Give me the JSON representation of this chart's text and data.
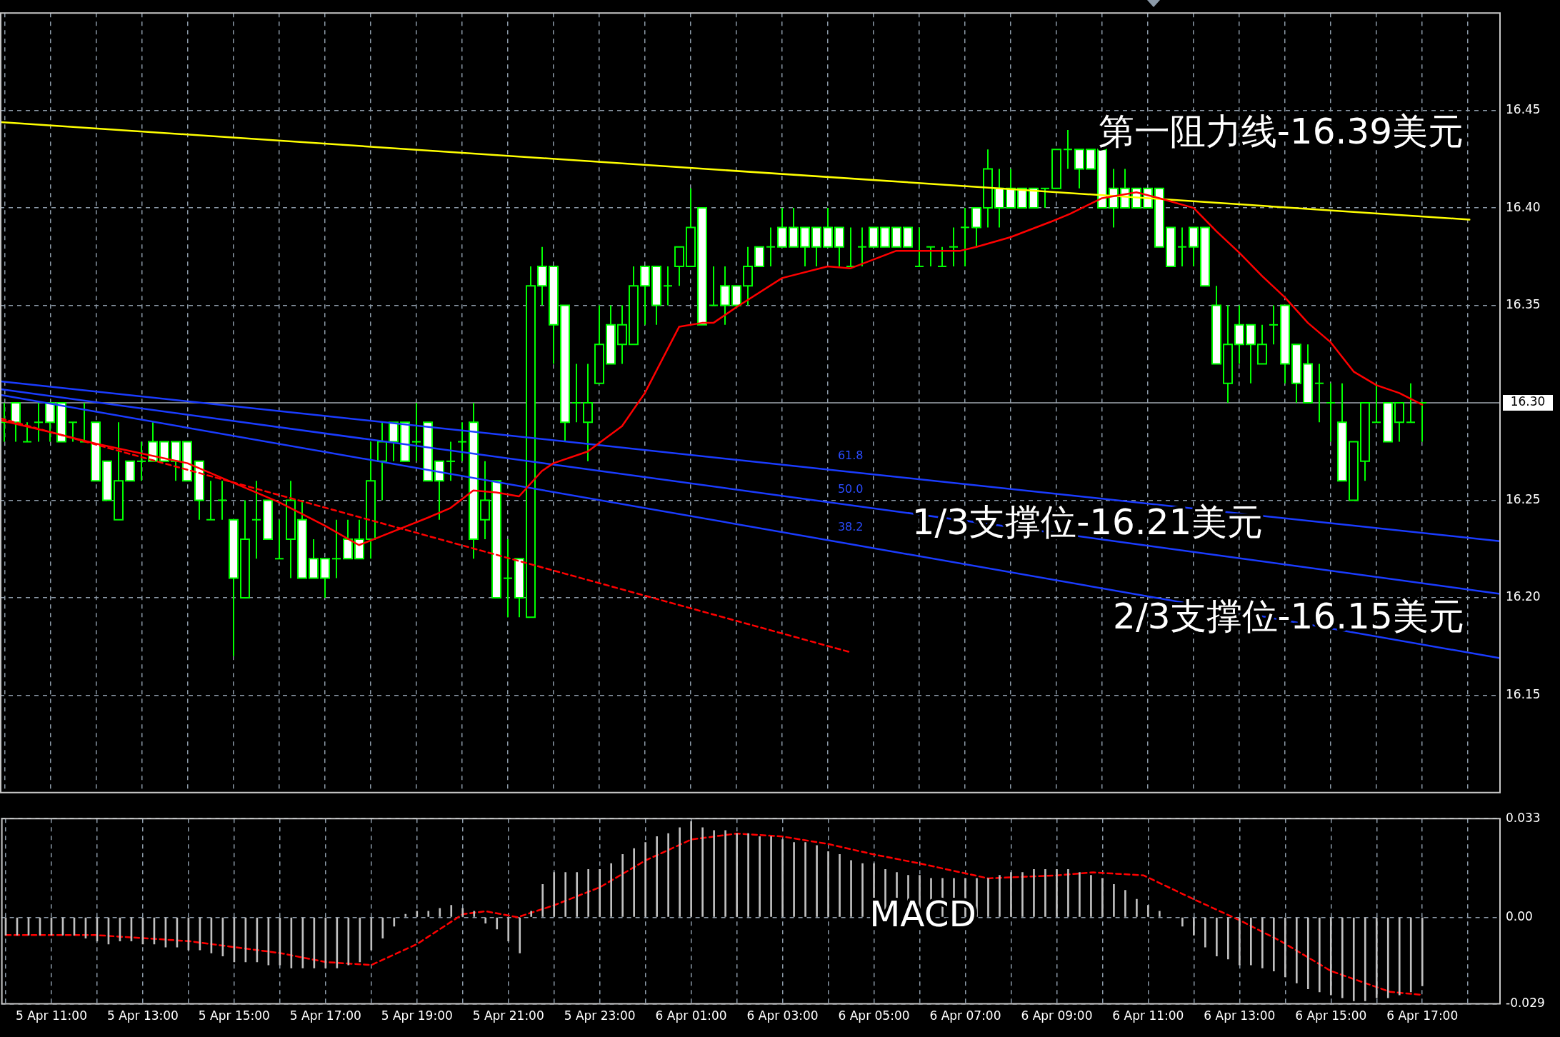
{
  "chart_data": [
    {
      "type": "candlestick",
      "colors": [
        "#00ff00",
        "#ffffff",
        "#00ff00",
        "#00ff00",
        "#ffffff",
        "#ffffff",
        "#00ff00",
        "#00ff00",
        "#ffffff",
        "#ffffff",
        "#000000",
        "#ffffff",
        "#00ff00",
        "#ffffff",
        "#ffffff",
        "#ffffff",
        "#ffffff",
        "#ffffff",
        "#00ff00",
        "#00ff00",
        "#ffffff",
        "#000000",
        "#00ff00",
        "#ffffff",
        "#00ff00",
        "#000000",
        "#ffffff",
        "#ffffff",
        "#ffffff",
        "#00ff00",
        "#ffffff",
        "#ffffff",
        "#000000",
        "#000000",
        "#ffffff",
        "#ffffff",
        "#00ff00",
        "#ffffff",
        "#ffffff",
        "#00ff00",
        "#00ff00",
        "#ffffff",
        "#000000",
        "#ffffff",
        "#00ff00",
        "#ffffff",
        "#000000",
        "#ffffff",
        "#ffffff",
        "#ffffff",
        "#00ff00",
        "#000000",
        "#000000",
        "#ffffff",
        "#000000",
        "#000000",
        "#ffffff",
        "#ffffff",
        "#00ff00",
        "#000000",
        "#000000",
        "#ffffff",
        "#00ff00",
        "#ffffff",
        "#ffffff",
        "#000000",
        "#ffffff",
        "#00ff00",
        "#ffffff",
        "#ffffff",
        "#ffffff",
        "#ffffff",
        "#ffffff",
        "#ffffff",
        "#00ff00",
        "#00ff00",
        "#ffffff",
        "#ffffff",
        "#ffffff",
        "#ffffff",
        "#00ff00",
        "#00ff00",
        "#00ff00",
        "#00ff00",
        "#00ff00",
        "#ffffff",
        "#000000",
        "#ffffff",
        "#ffffff",
        "#ffffff",
        "#ffffff",
        "#00ff00",
        "#000000",
        "#00ff00",
        "#ffffff",
        "#ffffff",
        "#ffffff",
        "#ffffff",
        "#ffffff",
        "#ffffff",
        "#ffffff",
        "#ffffff",
        "#ffffff",
        "#00ff00",
        "#ffffff",
        "#ffffff",
        "#ffffff",
        "#000000",
        "#ffffff",
        "#ffffff",
        "#000000",
        "#00ff00",
        "#ffffff",
        "#ffffff",
        "#ffffff",
        "#00ff00",
        "#00ff00",
        "#ffffff",
        "#000000",
        "#000000",
        "#00ff00",
        "#ffffff",
        "#000000",
        "#00ff00",
        "#00ff00"
      ],
      "x": [
        "--04-05T10:00",
        "--04-05T10:15",
        "--04-05T10:30",
        "--04-05T10:45",
        "--04-05T11:00",
        "--04-05T11:15",
        "--04-05T11:30",
        "--04-05T11:45",
        "--04-05T12:00",
        "--04-05T12:15",
        "--04-05T12:30",
        "--04-05T12:45",
        "--04-05T13:00",
        "--04-05T13:15",
        "--04-05T13:30",
        "--04-05T13:45",
        "--04-05T14:00",
        "--04-05T14:15",
        "--04-05T14:30",
        "--04-05T14:45",
        "--04-05T15:00",
        "--04-05T15:15",
        "--04-05T15:30",
        "--04-05T15:45",
        "--04-05T16:00",
        "--04-05T16:15",
        "--04-05T16:30",
        "--04-05T16:45",
        "--04-05T17:00",
        "--04-05T17:15",
        "--04-05T17:30",
        "--04-05T17:45",
        "--04-05T18:00",
        "--04-05T18:15",
        "--04-05T18:30",
        "--04-05T18:45",
        "--04-05T19:00",
        "--04-05T19:15",
        "--04-05T19:30",
        "--04-05T19:45",
        "--04-05T20:00",
        "--04-05T20:15",
        "--04-05T20:30",
        "--04-05T20:45",
        "--04-05T21:00",
        "--04-05T21:15",
        "--04-05T21:30",
        "--04-05T21:45",
        "--04-05T22:00",
        "--04-05T22:15",
        "--04-05T22:30",
        "--04-05T22:45",
        "--04-05T23:00",
        "--04-05T23:15",
        "--04-05T23:30",
        "--04-05T23:45",
        "--04-06T00:00",
        "--04-06T00:15",
        "--04-06T00:30",
        "--04-06T00:45",
        "--04-06T01:00",
        "--04-06T01:15",
        "--04-06T01:30",
        "--04-06T01:45",
        "--04-06T02:00",
        "--04-06T02:15",
        "--04-06T02:30",
        "--04-06T02:45",
        "--04-06T03:00",
        "--04-06T03:15",
        "--04-06T03:30",
        "--04-06T03:45",
        "--04-06T04:00",
        "--04-06T04:15",
        "--04-06T04:30",
        "--04-06T04:45",
        "--04-06T05:00",
        "--04-06T05:15",
        "--04-06T05:30",
        "--04-06T05:45",
        "--04-06T06:00",
        "--04-06T06:15",
        "--04-06T06:30",
        "--04-06T06:45",
        "--04-06T07:00",
        "--04-06T07:15",
        "--04-06T07:30",
        "--04-06T07:45",
        "--04-06T08:00",
        "--04-06T08:15",
        "--04-06T08:30",
        "--04-06T08:45",
        "--04-06T09:00",
        "--04-06T09:15",
        "--04-06T09:30",
        "--04-06T09:45",
        "--04-06T10:00",
        "--04-06T10:15",
        "--04-06T10:30",
        "--04-06T10:45",
        "--04-06T11:00",
        "--04-06T11:15",
        "--04-06T11:30",
        "--04-06T11:45",
        "--04-06T12:00",
        "--04-06T12:15",
        "--04-06T12:30",
        "--04-06T12:45",
        "--04-06T13:00",
        "--04-06T13:15",
        "--04-06T13:30",
        "--04-06T13:45",
        "--04-06T14:00",
        "--04-06T14:15",
        "--04-06T14:30",
        "--04-06T14:45",
        "--04-06T15:00",
        "--04-06T15:15",
        "--04-06T15:30",
        "--04-06T15:45",
        "--04-06T16:00",
        "--04-06T16:15",
        "--04-06T16:30",
        "--04-06T16:45",
        "--04-06T17:00"
      ],
      "ohlc": [
        [
          16.29,
          16.3,
          16.28,
          16.29
        ],
        [
          16.3,
          16.3,
          16.28,
          16.29
        ],
        [
          16.28,
          16.29,
          16.28,
          16.28
        ],
        [
          16.29,
          16.3,
          16.28,
          16.29
        ],
        [
          16.3,
          16.3,
          16.28,
          16.29
        ],
        [
          16.3,
          16.3,
          16.28,
          16.28
        ],
        [
          16.29,
          16.29,
          16.28,
          16.29
        ],
        [
          16.28,
          16.3,
          16.28,
          16.28
        ],
        [
          16.29,
          16.29,
          16.26,
          16.26
        ],
        [
          16.27,
          16.27,
          16.25,
          16.25
        ],
        [
          16.24,
          16.29,
          16.24,
          16.26
        ],
        [
          16.27,
          16.27,
          16.26,
          16.26
        ],
        [
          16.27,
          16.28,
          16.26,
          16.27
        ],
        [
          16.28,
          16.29,
          16.27,
          16.27
        ],
        [
          16.28,
          16.28,
          16.27,
          16.27
        ],
        [
          16.28,
          16.28,
          16.26,
          16.27
        ],
        [
          16.28,
          16.28,
          16.26,
          16.26
        ],
        [
          16.27,
          16.27,
          16.24,
          16.25
        ],
        [
          16.24,
          16.26,
          16.24,
          16.24
        ],
        [
          16.25,
          16.26,
          16.24,
          16.25
        ],
        [
          16.24,
          16.24,
          16.17,
          16.21
        ],
        [
          16.2,
          16.25,
          16.2,
          16.23
        ],
        [
          16.24,
          16.26,
          16.22,
          16.24
        ],
        [
          16.25,
          16.25,
          16.23,
          16.23
        ],
        [
          16.22,
          16.24,
          16.22,
          16.22
        ],
        [
          16.23,
          16.26,
          16.21,
          16.25
        ],
        [
          16.24,
          16.25,
          16.21,
          16.21
        ],
        [
          16.22,
          16.23,
          16.21,
          16.21
        ],
        [
          16.22,
          16.22,
          16.2,
          16.21
        ],
        [
          16.22,
          16.24,
          16.21,
          16.22
        ],
        [
          16.23,
          16.24,
          16.22,
          16.22
        ],
        [
          16.23,
          16.24,
          16.22,
          16.22
        ],
        [
          16.23,
          16.28,
          16.22,
          16.26
        ],
        [
          16.27,
          16.29,
          16.25,
          16.28
        ],
        [
          16.29,
          16.29,
          16.27,
          16.28
        ],
        [
          16.29,
          16.29,
          16.27,
          16.27
        ],
        [
          16.28,
          16.3,
          16.27,
          16.28
        ],
        [
          16.29,
          16.29,
          16.26,
          16.26
        ],
        [
          16.27,
          16.27,
          16.24,
          16.26
        ],
        [
          16.27,
          16.28,
          16.26,
          16.27
        ],
        [
          16.28,
          16.29,
          16.27,
          16.28
        ],
        [
          16.29,
          16.3,
          16.22,
          16.23
        ],
        [
          16.24,
          16.27,
          16.23,
          16.25
        ],
        [
          16.26,
          16.26,
          16.2,
          16.2
        ],
        [
          16.21,
          16.23,
          16.19,
          16.21
        ],
        [
          16.22,
          16.22,
          16.19,
          16.2
        ],
        [
          16.19,
          16.37,
          16.19,
          16.36
        ],
        [
          16.37,
          16.38,
          16.35,
          16.36
        ],
        [
          16.37,
          16.37,
          16.32,
          16.34
        ],
        [
          16.35,
          16.35,
          16.28,
          16.29
        ],
        [
          16.3,
          16.32,
          16.29,
          16.3
        ],
        [
          16.29,
          16.32,
          16.27,
          16.3
        ],
        [
          16.31,
          16.35,
          16.31,
          16.33
        ],
        [
          16.34,
          16.35,
          16.32,
          16.32
        ],
        [
          16.33,
          16.35,
          16.32,
          16.34
        ],
        [
          16.33,
          16.37,
          16.33,
          16.36
        ],
        [
          16.37,
          16.37,
          16.34,
          16.36
        ],
        [
          16.37,
          16.37,
          16.34,
          16.35
        ],
        [
          16.36,
          16.37,
          16.35,
          16.36
        ],
        [
          16.37,
          16.38,
          16.36,
          16.38
        ],
        [
          16.37,
          16.41,
          16.37,
          16.39
        ],
        [
          16.4,
          16.4,
          16.34,
          16.34
        ],
        [
          16.35,
          16.37,
          16.35,
          16.35
        ],
        [
          16.36,
          16.37,
          16.34,
          16.35
        ],
        [
          16.36,
          16.36,
          16.35,
          16.35
        ],
        [
          16.36,
          16.38,
          16.35,
          16.37
        ],
        [
          16.38,
          16.38,
          16.37,
          16.37
        ],
        [
          16.38,
          16.39,
          16.37,
          16.38
        ],
        [
          16.39,
          16.4,
          16.38,
          16.38
        ],
        [
          16.39,
          16.4,
          16.38,
          16.38
        ],
        [
          16.39,
          16.39,
          16.37,
          16.38
        ],
        [
          16.39,
          16.39,
          16.37,
          16.38
        ],
        [
          16.39,
          16.4,
          16.38,
          16.38
        ],
        [
          16.39,
          16.39,
          16.37,
          16.38
        ],
        [
          16.37,
          16.39,
          16.37,
          16.37
        ],
        [
          16.38,
          16.39,
          16.37,
          16.38
        ],
        [
          16.39,
          16.39,
          16.38,
          16.38
        ],
        [
          16.39,
          16.39,
          16.38,
          16.38
        ],
        [
          16.39,
          16.39,
          16.38,
          16.38
        ],
        [
          16.39,
          16.39,
          16.38,
          16.38
        ],
        [
          16.37,
          16.39,
          16.37,
          16.37
        ],
        [
          16.38,
          16.38,
          16.37,
          16.38
        ],
        [
          16.37,
          16.38,
          16.37,
          16.37
        ],
        [
          16.38,
          16.39,
          16.37,
          16.38
        ],
        [
          16.39,
          16.4,
          16.37,
          16.39
        ],
        [
          16.4,
          16.4,
          16.38,
          16.39
        ],
        [
          16.4,
          16.43,
          16.39,
          16.42
        ],
        [
          16.41,
          16.42,
          16.39,
          16.4
        ],
        [
          16.41,
          16.42,
          16.4,
          16.4
        ],
        [
          16.41,
          16.41,
          16.4,
          16.4
        ],
        [
          16.41,
          16.41,
          16.4,
          16.4
        ],
        [
          16.41,
          16.41,
          16.4,
          16.41
        ],
        [
          16.41,
          16.43,
          16.41,
          16.43
        ],
        [
          16.43,
          16.44,
          16.42,
          16.43
        ],
        [
          16.43,
          16.43,
          16.41,
          16.42
        ],
        [
          16.43,
          16.43,
          16.42,
          16.42
        ],
        [
          16.43,
          16.43,
          16.4,
          16.4
        ],
        [
          16.41,
          16.42,
          16.39,
          16.4
        ],
        [
          16.41,
          16.42,
          16.4,
          16.4
        ],
        [
          16.41,
          16.41,
          16.4,
          16.4
        ],
        [
          16.41,
          16.41,
          16.4,
          16.4
        ],
        [
          16.41,
          16.41,
          16.38,
          16.38
        ],
        [
          16.39,
          16.39,
          16.37,
          16.37
        ],
        [
          16.38,
          16.39,
          16.37,
          16.38
        ],
        [
          16.39,
          16.39,
          16.37,
          16.38
        ],
        [
          16.39,
          16.39,
          16.36,
          16.36
        ],
        [
          16.35,
          16.36,
          16.32,
          16.32
        ],
        [
          16.31,
          16.35,
          16.3,
          16.33
        ],
        [
          16.34,
          16.35,
          16.32,
          16.33
        ],
        [
          16.34,
          16.34,
          16.31,
          16.33
        ],
        [
          16.32,
          16.34,
          16.32,
          16.33
        ],
        [
          16.34,
          16.35,
          16.33,
          16.34
        ],
        [
          16.35,
          16.35,
          16.31,
          16.32
        ],
        [
          16.33,
          16.33,
          16.3,
          16.31
        ],
        [
          16.32,
          16.33,
          16.3,
          16.3
        ],
        [
          16.31,
          16.32,
          16.29,
          16.31
        ],
        [
          16.3,
          16.31,
          16.28,
          16.3
        ],
        [
          16.29,
          16.31,
          16.26,
          16.26
        ],
        [
          16.25,
          16.28,
          16.25,
          16.28
        ],
        [
          16.27,
          16.3,
          16.26,
          16.3
        ],
        [
          16.29,
          16.31,
          16.29,
          16.29
        ],
        [
          16.3,
          16.3,
          16.28,
          16.28
        ],
        [
          16.29,
          16.3,
          16.28,
          16.3
        ],
        [
          16.29,
          16.31,
          16.29,
          16.29
        ],
        [
          16.3,
          16.3,
          16.28,
          16.3
        ]
      ],
      "series": [
        {
          "type": "line",
          "color": "#ff0000",
          "x": [
            "--04-05T09:55",
            "--04-05T11:00",
            "--04-05T12:00",
            "--04-05T13:00",
            "--04-05T14:00",
            "--04-05T15:00",
            "--04-05T16:00",
            "--04-05T17:00",
            "--04-05T17:45",
            "--04-05T18:30",
            "--04-05T19:15",
            "--04-05T19:45",
            "--04-05T20:15",
            "--04-05T20:45",
            "--04-05T21:15",
            "--04-05T21:45",
            "--04-05T22:00",
            "--04-05T22:45",
            "--04-05T23:30",
            "--04-06T00:00",
            "--04-06T00:45",
            "--04-06T01:15",
            "--04-06T01:30",
            "--04-06T02:00",
            "--04-06T03:00",
            "--04-06T04:00",
            "--04-06T04:30",
            "--04-06T05:30",
            "--04-06T06:18",
            "--04-06T06:54",
            "--04-06T07:15",
            "--04-06T08:00",
            "--04-06T09:00",
            "--04-06T09:18",
            "--04-06T10:00",
            "--04-06T10:45",
            "--04-06T11:15",
            "--04-06T12:00",
            "--04-06T12:30",
            "--04-06T13:00",
            "--04-06T13:30",
            "--04-06T14:00",
            "--04-06T14:30",
            "--04-06T15:00",
            "--04-06T15:30",
            "--04-06T16:00",
            "--04-06T16:30",
            "--04-06T17:00"
          ],
          "values": [
            16.291,
            16.285,
            16.279,
            16.274,
            16.269,
            16.259,
            16.249,
            16.237,
            16.227,
            16.234,
            16.241,
            16.246,
            16.255,
            16.254,
            16.252,
            16.265,
            16.269,
            16.275,
            16.288,
            16.305,
            16.339,
            16.341,
            16.341,
            16.349,
            16.364,
            16.37,
            16.369,
            16.378,
            16.378,
            16.378,
            16.38,
            16.385,
            16.394,
            16.397,
            16.405,
            16.408,
            16.405,
            16.4,
            16.388,
            16.377,
            16.365,
            16.354,
            16.341,
            16.331,
            16.316,
            16.309,
            16.305,
            16.299
          ]
        },
        {
          "type": "line",
          "color": "#ff0000",
          "line_style": "dashed",
          "x": [
            "--04-05T09:55",
            "--04-06T04:30"
          ],
          "values": [
            16.292,
            16.172
          ]
        },
        {
          "type": "line",
          "color": "#ffff00",
          "x": [
            "--04-05T09:55",
            "--04-06T18:02"
          ],
          "values": [
            16.444,
            16.394
          ]
        },
        {
          "type": "line",
          "color": "#1a3cff",
          "x": [
            "--04-05T09:55",
            "--04-06T18:42"
          ],
          "values": [
            16.311,
            16.229
          ]
        },
        {
          "type": "line",
          "color": "#1a3cff",
          "x": [
            "--04-05T09:55",
            "--04-06T18:42"
          ],
          "values": [
            16.307,
            16.202
          ]
        },
        {
          "type": "line",
          "color": "#1a3cff",
          "x": [
            "--04-05T09:55",
            "--04-06T18:42"
          ],
          "values": [
            16.304,
            16.169
          ]
        }
      ],
      "xlim": [
        "--04-05T09:54",
        "--04-06T18:42"
      ],
      "xticks": [
        {
          "value": "--04-05T10:00",
          "label": null
        },
        {
          "value": "--04-05T11:00",
          "label": null
        },
        {
          "value": "--04-05T12:00",
          "label": null
        },
        {
          "value": "--04-05T13:00",
          "label": null
        },
        {
          "value": "--04-05T14:00",
          "label": null
        },
        {
          "value": "--04-05T15:00",
          "label": null
        },
        {
          "value": "--04-05T16:00",
          "label": null
        },
        {
          "value": "--04-05T17:00",
          "label": null
        },
        {
          "value": "--04-05T18:00",
          "label": null
        },
        {
          "value": "--04-05T19:00",
          "label": null
        },
        {
          "value": "--04-05T20:00",
          "label": null
        },
        {
          "value": "--04-05T21:00",
          "label": null
        },
        {
          "value": "--04-05T22:00",
          "label": null
        },
        {
          "value": "--04-05T23:00",
          "label": null
        },
        {
          "value": "--04-06T00:00",
          "label": null
        },
        {
          "value": "--04-06T01:00",
          "label": null
        },
        {
          "value": "--04-06T02:00",
          "label": null
        },
        {
          "value": "--04-06T03:00",
          "label": null
        },
        {
          "value": "--04-06T04:00",
          "label": null
        },
        {
          "value": "--04-06T05:00",
          "label": null
        },
        {
          "value": "--04-06T06:00",
          "label": null
        },
        {
          "value": "--04-06T07:00",
          "label": null
        },
        {
          "value": "--04-06T08:00",
          "label": null
        },
        {
          "value": "--04-06T09:00",
          "label": null
        },
        {
          "value": "--04-06T10:00",
          "label": null
        },
        {
          "value": "--04-06T11:00",
          "label": null
        },
        {
          "value": "--04-06T12:00",
          "label": null
        },
        {
          "value": "--04-06T13:00",
          "label": null
        },
        {
          "value": "--04-06T14:00",
          "label": null
        },
        {
          "value": "--04-06T15:00",
          "label": null
        },
        {
          "value": "--04-06T16:00",
          "label": null
        },
        {
          "value": "--04-06T17:00",
          "label": null
        },
        {
          "value": "--04-06T18:00",
          "label": null
        }
      ],
      "ylim": [
        16.1,
        16.5
      ],
      "yticks": [
        16.15,
        {
          "value": 16.2,
          "label": "16.20"
        },
        16.25,
        16.35,
        {
          "value": 16.4,
          "label": "16.40"
        },
        16.45
      ],
      "grid": true,
      "tick_labels": "y",
      "ref_lines": [
        {
          "axis": "y",
          "value": 16.3,
          "label": "16.30"
        }
      ],
      "annotations": [
        "第一阻力线-16.39美元",
        "1/3支撑位-16.21美元",
        "2/3支撑位-16.15美元",
        "61.8",
        "50.0",
        "38.2"
      ]
    },
    {
      "type": "bar",
      "x": [
        "--04-05T10:00",
        "--04-05T10:15",
        "--04-05T10:30",
        "--04-05T10:45",
        "--04-05T11:00",
        "--04-05T11:15",
        "--04-05T11:30",
        "--04-05T11:45",
        "--04-05T12:00",
        "--04-05T12:15",
        "--04-05T12:30",
        "--04-05T12:45",
        "--04-05T13:00",
        "--04-05T13:15",
        "--04-05T13:30",
        "--04-05T13:45",
        "--04-05T14:00",
        "--04-05T14:15",
        "--04-05T14:30",
        "--04-05T14:45",
        "--04-05T15:00",
        "--04-05T15:15",
        "--04-05T15:30",
        "--04-05T15:45",
        "--04-05T16:00",
        "--04-05T16:15",
        "--04-05T16:30",
        "--04-05T16:45",
        "--04-05T17:00",
        "--04-05T17:15",
        "--04-05T17:30",
        "--04-05T17:45",
        "--04-05T18:00",
        "--04-05T18:15",
        "--04-05T18:30",
        "--04-05T18:45",
        "--04-05T19:00",
        "--04-05T19:15",
        "--04-05T19:30",
        "--04-05T19:45",
        "--04-05T20:00",
        "--04-05T20:15",
        "--04-05T20:30",
        "--04-05T20:45",
        "--04-05T21:00",
        "--04-05T21:15",
        "--04-05T21:30",
        "--04-05T21:45",
        "--04-05T22:00",
        "--04-05T22:15",
        "--04-05T22:30",
        "--04-05T22:45",
        "--04-05T23:00",
        "--04-05T23:15",
        "--04-05T23:30",
        "--04-05T23:45",
        "--04-06T00:00",
        "--04-06T00:15",
        "--04-06T00:30",
        "--04-06T00:45",
        "--04-06T01:00",
        "--04-06T01:15",
        "--04-06T01:30",
        "--04-06T01:45",
        "--04-06T02:00",
        "--04-06T02:15",
        "--04-06T02:30",
        "--04-06T02:45",
        "--04-06T03:00",
        "--04-06T03:15",
        "--04-06T03:30",
        "--04-06T03:45",
        "--04-06T04:00",
        "--04-06T04:15",
        "--04-06T04:30",
        "--04-06T04:45",
        "--04-06T05:00",
        "--04-06T05:15",
        "--04-06T05:30",
        "--04-06T05:45",
        "--04-06T06:00",
        "--04-06T06:15",
        "--04-06T06:30",
        "--04-06T06:45",
        "--04-06T07:00",
        "--04-06T07:15",
        "--04-06T07:30",
        "--04-06T07:45",
        "--04-06T08:00",
        "--04-06T08:15",
        "--04-06T08:30",
        "--04-06T08:45",
        "--04-06T09:00",
        "--04-06T09:15",
        "--04-06T09:30",
        "--04-06T09:45",
        "--04-06T10:00",
        "--04-06T10:15",
        "--04-06T10:30",
        "--04-06T10:45",
        "--04-06T11:00",
        "--04-06T11:15",
        "--04-06T11:30",
        "--04-06T11:45",
        "--04-06T12:00",
        "--04-06T12:15",
        "--04-06T12:30",
        "--04-06T12:45",
        "--04-06T13:00",
        "--04-06T13:15",
        "--04-06T13:30",
        "--04-06T13:45",
        "--04-06T14:00",
        "--04-06T14:15",
        "--04-06T14:30",
        "--04-06T14:45",
        "--04-06T15:00",
        "--04-06T15:15",
        "--04-06T15:30",
        "--04-06T15:45",
        "--04-06T16:00",
        "--04-06T16:15",
        "--04-06T16:30",
        "--04-06T16:45",
        "--04-06T17:00"
      ],
      "series": [
        {
          "color": "#c0c0c0",
          "values": [
            -0.006,
            -0.006,
            -0.006,
            -0.006,
            -0.006,
            -0.006,
            -0.006,
            -0.007,
            -0.008,
            -0.009,
            -0.008,
            -0.008,
            -0.009,
            -0.009,
            -0.01,
            -0.01,
            -0.011,
            -0.011,
            -0.012,
            -0.013,
            -0.015,
            -0.015,
            -0.015,
            -0.016,
            -0.016,
            -0.017,
            -0.017,
            -0.017,
            -0.017,
            -0.017,
            -0.016,
            -0.015,
            -0.011,
            -0.007,
            -0.003,
            0.001,
            0.002,
            0.002,
            0.003,
            0.004,
            0.003,
            0.002,
            -0.002,
            -0.004,
            -0.008,
            -0.012,
            0.002,
            0.011,
            0.015,
            0.015,
            0.015,
            0.016,
            0.016,
            0.018,
            0.021,
            0.023,
            0.025,
            0.027,
            0.028,
            0.03,
            0.032,
            0.03,
            0.029,
            0.029,
            0.028,
            0.028,
            0.027,
            0.027,
            0.026,
            0.025,
            0.025,
            0.024,
            0.022,
            0.021,
            0.019,
            0.018,
            0.018,
            0.016,
            0.015,
            0.014,
            0.014,
            0.013,
            0.013,
            0.013,
            0.013,
            0.013,
            0.013,
            0.014,
            0.015,
            0.015,
            0.016,
            0.016,
            0.016,
            0.016,
            0.015,
            0.014,
            0.013,
            0.011,
            0.009,
            0.006,
            0.004,
            0.002,
            0,
            -0.003,
            -0.006,
            -0.01,
            -0.013,
            -0.014,
            -0.016,
            -0.016,
            -0.017,
            -0.018,
            -0.02,
            -0.022,
            -0.024,
            -0.025,
            -0.026,
            -0.027,
            -0.028,
            -0.028,
            -0.027,
            -0.027,
            -0.026,
            -0.025,
            -0.023
          ]
        },
        {
          "type": "line",
          "color": "#ff0000",
          "line_style": "dashed",
          "x": [
            "--04-05T10:00",
            "--04-05T12:00",
            "--04-05T14:00",
            "--04-05T16:00",
            "--04-05T17:00",
            "--04-05T18:00",
            "--04-05T19:00",
            "--04-05T20:00",
            "--04-05T20:30",
            "--04-05T21:12",
            "--04-05T22:00",
            "--04-05T23:00",
            "--04-06T00:00",
            "--04-06T01:00",
            "--04-06T02:00",
            "--04-06T03:00",
            "--04-06T04:00",
            "--04-06T05:00",
            "--04-06T06:00",
            "--04-06T07:30",
            "--04-06T09:00",
            "--04-06T09:48",
            "--04-06T10:54",
            "--04-06T12:00",
            "--04-06T13:00",
            "--04-06T13:54",
            "--04-06T15:00",
            "--04-06T16:18",
            "--04-06T17:00"
          ],
          "values": [
            -0.006,
            -0.006,
            -0.008,
            -0.012,
            -0.015,
            -0.016,
            -0.009,
            0.001,
            0.002,
            0,
            0.004,
            0.01,
            0.019,
            0.026,
            0.028,
            0.027,
            0.0245,
            0.021,
            0.018,
            0.013,
            0.014,
            0.015,
            0.014,
            0.006,
            -0.001,
            -0.008,
            -0.018,
            -0.025,
            -0.026
          ]
        }
      ],
      "xlim": [
        "--04-05T09:54",
        "--04-06T18:42"
      ],
      "xticks": [
        {
          "value": "--04-05T10:00",
          "label": null
        },
        {
          "value": "--04-05T11:00",
          "label": "5 Apr 11:00"
        },
        {
          "value": "--04-05T12:00",
          "label": null
        },
        {
          "value": "--04-05T13:00",
          "label": "5 Apr 13:00"
        },
        {
          "value": "--04-05T14:00",
          "label": null
        },
        {
          "value": "--04-05T15:00",
          "label": "5 Apr 15:00"
        },
        {
          "value": "--04-05T16:00",
          "label": null
        },
        {
          "value": "--04-05T17:00",
          "label": "5 Apr 17:00"
        },
        {
          "value": "--04-05T18:00",
          "label": null
        },
        {
          "value": "--04-05T19:00",
          "label": "5 Apr 19:00"
        },
        {
          "value": "--04-05T20:00",
          "label": null
        },
        {
          "value": "--04-05T21:00",
          "label": "5 Apr 21:00"
        },
        {
          "value": "--04-05T22:00",
          "label": null
        },
        {
          "value": "--04-05T23:00",
          "label": "5 Apr 23:00"
        },
        {
          "value": "--04-06T00:00",
          "label": null
        },
        {
          "value": "--04-06T01:00",
          "label": "6 Apr 01:00"
        },
        {
          "value": "--04-06T02:00",
          "label": null
        },
        {
          "value": "--04-06T03:00",
          "label": "6 Apr 03:00"
        },
        {
          "value": "--04-06T04:00",
          "label": null
        },
        {
          "value": "--04-06T05:00",
          "label": "6 Apr 05:00"
        },
        {
          "value": "--04-06T06:00",
          "label": null
        },
        {
          "value": "--04-06T07:00",
          "label": "6 Apr 07:00"
        },
        {
          "value": "--04-06T08:00",
          "label": null
        },
        {
          "value": "--04-06T09:00",
          "label": "6 Apr 09:00"
        },
        {
          "value": "--04-06T10:00",
          "label": null
        },
        {
          "value": "--04-06T11:00",
          "label": "6 Apr 11:00"
        },
        {
          "value": "--04-06T12:00",
          "label": null
        },
        {
          "value": "--04-06T13:00",
          "label": "6 Apr 13:00"
        },
        {
          "value": "--04-06T14:00",
          "label": null
        },
        {
          "value": "--04-06T15:00",
          "label": "6 Apr 15:00"
        },
        {
          "value": "--04-06T16:00",
          "label": null
        },
        {
          "value": "--04-06T17:00",
          "label": "6 Apr 17:00"
        },
        {
          "value": "--04-06T18:00",
          "label": null
        }
      ],
      "ylim": [
        -0.029,
        0.033
      ],
      "yticks": [
        0.033,
        {
          "value": 0,
          "label": "0.00"
        },
        -0.029
      ],
      "grid": true,
      "annotations": [
        "MACD"
      ]
    }
  ]
}
